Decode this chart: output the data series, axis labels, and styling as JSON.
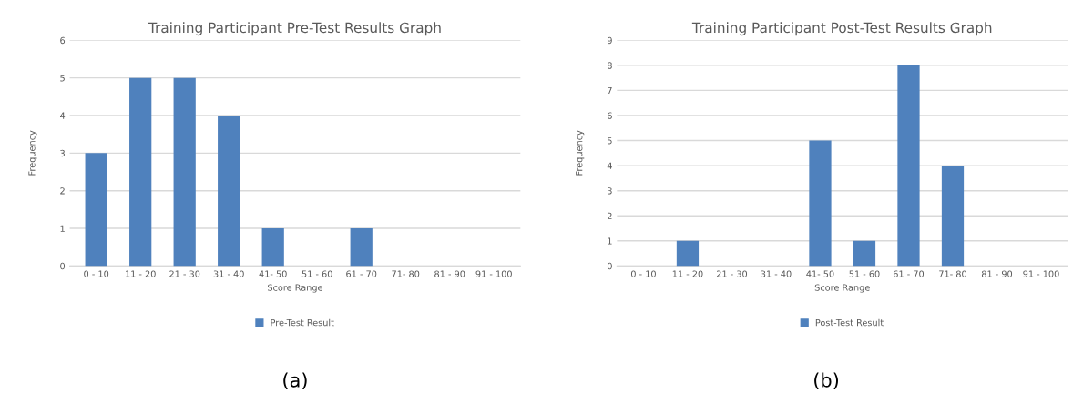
{
  "chart_data": [
    {
      "type": "bar",
      "title": "Training Participant Pre-Test Results Graph",
      "xlabel": "Score Range",
      "ylabel": "Frequency",
      "categories": [
        "0 - 10",
        "11 - 20",
        "21 - 30",
        "31 - 40",
        "41- 50",
        "51 - 60",
        "61 - 70",
        "71- 80",
        "81 - 90",
        "91 - 100"
      ],
      "series": [
        {
          "name": "Pre-Test Result",
          "color": "#4f81bd",
          "values": [
            3,
            5,
            5,
            4,
            1,
            0,
            1,
            0,
            0,
            0
          ]
        }
      ],
      "ylim": [
        0,
        6
      ],
      "yticks": [
        0,
        1,
        2,
        3,
        4,
        5,
        6
      ],
      "grid": "y",
      "legend": "bottom",
      "annotations": [
        "(a)"
      ]
    },
    {
      "type": "bar",
      "title": "Training Participant Post-Test Results Graph",
      "xlabel": "Score Range",
      "ylabel": "Frequency",
      "categories": [
        "0 - 10",
        "11 - 20",
        "21 - 30",
        "31 - 40",
        "41- 50",
        "51 - 60",
        "61 - 70",
        "71- 80",
        "81 - 90",
        "91 - 100"
      ],
      "series": [
        {
          "name": "Post-Test Result",
          "color": "#4f81bd",
          "values": [
            0,
            1,
            0,
            0,
            5,
            1,
            8,
            4,
            0,
            0
          ]
        }
      ],
      "ylim": [
        0,
        9
      ],
      "yticks": [
        0,
        1,
        2,
        3,
        4,
        5,
        6,
        7,
        8,
        9
      ],
      "grid": "y",
      "legend": "bottom",
      "annotations": [
        "(b)"
      ]
    }
  ]
}
